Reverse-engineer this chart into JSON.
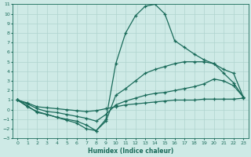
{
  "xlabel": "Humidex (Indice chaleur)",
  "background_color": "#ceeae6",
  "grid_color": "#afd4cf",
  "line_color": "#1a6b5a",
  "xlim": [
    -0.5,
    23.5
  ],
  "ylim": [
    -3,
    11
  ],
  "xticks": [
    0,
    1,
    2,
    3,
    4,
    5,
    6,
    7,
    8,
    9,
    10,
    11,
    12,
    13,
    14,
    15,
    16,
    17,
    18,
    19,
    20,
    21,
    22,
    23
  ],
  "yticks": [
    -3,
    -2,
    -1,
    0,
    1,
    2,
    3,
    4,
    5,
    6,
    7,
    8,
    9,
    10,
    11
  ],
  "series": [
    {
      "x": [
        0,
        1,
        2,
        3,
        4,
        5,
        6,
        7,
        8,
        9,
        10,
        11,
        12,
        13,
        14,
        15,
        16,
        17,
        18,
        19,
        20,
        21,
        22,
        23
      ],
      "y": [
        1.0,
        0.7,
        0.3,
        0.2,
        0.1,
        0.0,
        -0.1,
        -0.2,
        -0.1,
        0.1,
        0.3,
        0.5,
        0.6,
        0.7,
        0.8,
        0.9,
        1.0,
        1.0,
        1.0,
        1.1,
        1.1,
        1.1,
        1.1,
        1.2
      ]
    },
    {
      "x": [
        0,
        1,
        2,
        3,
        4,
        5,
        6,
        7,
        8,
        9,
        10,
        11,
        12,
        13,
        14,
        15,
        16,
        17,
        18,
        19,
        20,
        21,
        22,
        23
      ],
      "y": [
        1.0,
        0.6,
        0.1,
        -0.2,
        -0.3,
        -0.5,
        -0.7,
        -0.9,
        -1.2,
        -0.5,
        0.5,
        0.9,
        1.2,
        1.5,
        1.7,
        1.8,
        2.0,
        2.2,
        2.4,
        2.7,
        3.2,
        3.0,
        2.5,
        1.3
      ]
    },
    {
      "x": [
        0,
        1,
        2,
        3,
        4,
        5,
        6,
        7,
        8,
        9,
        10,
        11,
        12,
        13,
        14,
        15,
        16,
        17,
        18,
        19,
        20,
        21,
        22,
        23
      ],
      "y": [
        1.0,
        0.4,
        -0.3,
        -0.5,
        -0.8,
        -1.0,
        -1.2,
        -1.6,
        -2.2,
        -1.2,
        1.5,
        2.2,
        3.0,
        3.8,
        4.2,
        4.5,
        4.8,
        5.0,
        5.0,
        5.0,
        4.8,
        4.2,
        3.8,
        1.3
      ]
    },
    {
      "x": [
        0,
        1,
        2,
        3,
        4,
        5,
        6,
        7,
        8,
        9,
        10,
        11,
        12,
        13,
        14,
        15,
        16,
        17,
        18,
        19,
        20,
        21,
        22,
        23
      ],
      "y": [
        1.0,
        0.3,
        -0.2,
        -0.5,
        -0.8,
        -1.1,
        -1.4,
        -2.0,
        -2.2,
        -1.0,
        4.8,
        8.0,
        9.8,
        10.8,
        11.0,
        10.0,
        7.2,
        6.5,
        5.8,
        5.2,
        4.8,
        3.8,
        2.8,
        1.3
      ]
    }
  ]
}
